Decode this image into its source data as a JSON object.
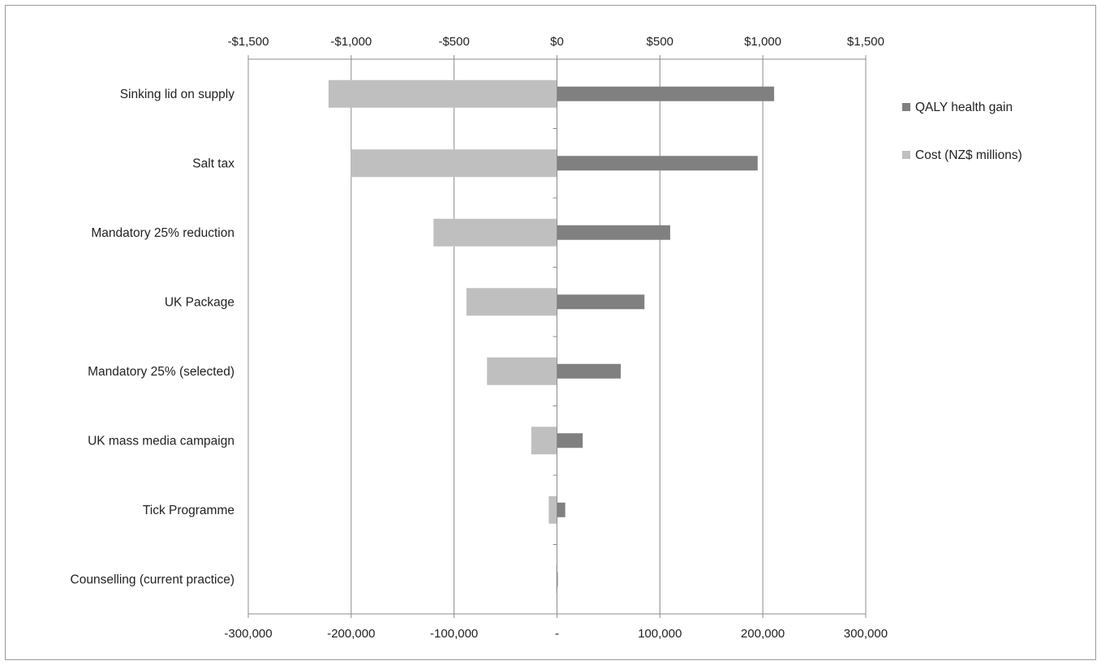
{
  "chart_data": {
    "type": "bar",
    "orientation": "horizontal",
    "categories": [
      "Sinking lid on supply",
      "Salt tax",
      "Mandatory 25% reduction",
      "UK Package",
      "Mandatory 25% (selected)",
      "UK mass media campaign",
      "Tick Programme",
      "Counselling (current practice)"
    ],
    "series": [
      {
        "name": "QALY health gain",
        "axis": "bottom",
        "color": "#808080",
        "values": [
          211000,
          195000,
          110000,
          85000,
          62000,
          25000,
          8000,
          800
        ]
      },
      {
        "name": "Cost (NZ$ millions)",
        "axis": "top",
        "color": "#bfbfbf",
        "values": [
          -1110,
          -1000,
          -600,
          -440,
          -340,
          -125,
          -40,
          -4
        ]
      }
    ],
    "x_bottom": {
      "range": [
        -300000,
        300000
      ],
      "ticks": [
        -300000,
        -200000,
        -100000,
        0,
        100000,
        200000,
        300000
      ],
      "tick_labels": [
        "-300,000",
        "-200,000",
        "-100,000",
        "-",
        "100,000",
        "200,000",
        "300,000"
      ]
    },
    "x_top": {
      "range": [
        -1500,
        1500
      ],
      "ticks": [
        -1500,
        -1000,
        -500,
        0,
        500,
        1000,
        1500
      ],
      "tick_labels": [
        "-$1,500",
        "-$1,000",
        "-$500",
        "$0",
        "$500",
        "$1,000",
        "$1,500"
      ]
    },
    "grid": true,
    "legend_position": "right"
  }
}
